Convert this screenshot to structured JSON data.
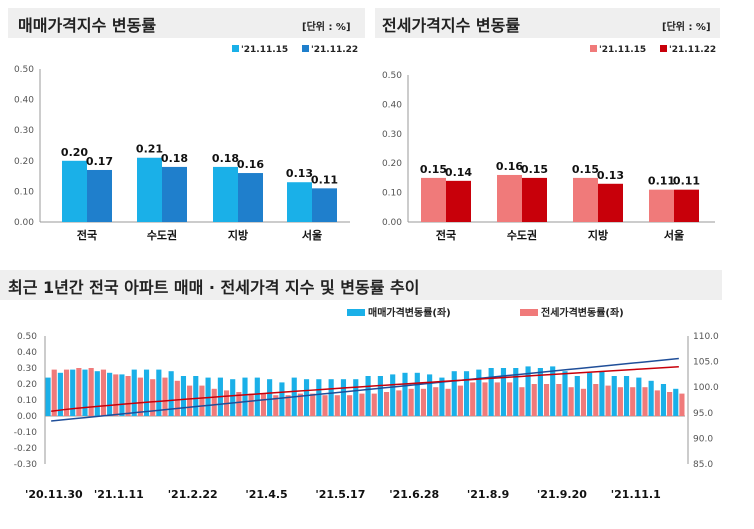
{
  "chart_data": [
    {
      "type": "bar",
      "title": "매매가격지수 변동률",
      "unit": "[단위 : %]",
      "categories": [
        "전국",
        "수도권",
        "지방",
        "서울"
      ],
      "series": [
        {
          "name": "'21.11.15",
          "values": [
            0.2,
            0.21,
            0.18,
            0.13
          ],
          "color": "#1ab0e8"
        },
        {
          "name": "'21.11.22",
          "values": [
            0.17,
            0.18,
            0.16,
            0.11
          ],
          "color": "#1f7fcc"
        }
      ],
      "ylim": [
        0,
        0.5
      ],
      "yticks": [
        "0.00",
        "0.10",
        "0.20",
        "0.30",
        "0.40",
        "0.50"
      ]
    },
    {
      "type": "bar",
      "title": "전세가격지수 변동률",
      "unit": "[단위 : %]",
      "categories": [
        "전국",
        "수도권",
        "지방",
        "서울"
      ],
      "series": [
        {
          "name": "'21.11.15",
          "values": [
            0.15,
            0.16,
            0.15,
            0.11
          ],
          "color": "#f07a7a"
        },
        {
          "name": "'21.11.22",
          "values": [
            0.14,
            0.15,
            0.13,
            0.11
          ],
          "color": "#c8000a"
        }
      ],
      "ylim": [
        0,
        0.5
      ],
      "yticks": [
        "0.00",
        "0.10",
        "0.20",
        "0.30",
        "0.40",
        "0.50"
      ]
    },
    {
      "type": "bar+line",
      "title": "최근 1년간 전국 아파트 매매 · 전세가격 지수 및 변동률 추이",
      "xticks": [
        "'20.11.30",
        "'21.1.11",
        "'21.2.22",
        "'21.4.5",
        "'21.5.17",
        "'21.6.28",
        "'21.8.9",
        "'21.9.20",
        "'21.11.1"
      ],
      "yticks_left": [
        "0.50",
        "0.40",
        "0.30",
        "0.20",
        "0.10",
        "0.00",
        "-0.10",
        "-0.20",
        "-0.30"
      ],
      "ylim_left": [
        -0.3,
        0.5
      ],
      "yticks_right": [
        "110.0",
        "105.0",
        "100.0",
        "95.0",
        "90.0",
        "85.0"
      ],
      "ylim_right": [
        85,
        110
      ],
      "series": [
        {
          "name": "매매가격변동률(좌)",
          "color": "#1ab0e8",
          "values": [
            0.24,
            0.27,
            0.29,
            0.29,
            0.28,
            0.27,
            0.26,
            0.29,
            0.29,
            0.29,
            0.28,
            0.25,
            0.25,
            0.24,
            0.24,
            0.23,
            0.24,
            0.24,
            0.23,
            0.21,
            0.24,
            0.23,
            0.23,
            0.23,
            0.23,
            0.23,
            0.25,
            0.25,
            0.26,
            0.27,
            0.27,
            0.26,
            0.24,
            0.28,
            0.28,
            0.29,
            0.3,
            0.3,
            0.3,
            0.31,
            0.3,
            0.31,
            0.28,
            0.25,
            0.27,
            0.28,
            0.25,
            0.25,
            0.24,
            0.22,
            0.2,
            0.17
          ]
        },
        {
          "name": "전세가격변동률(좌)",
          "color": "#f07a7a",
          "values": [
            0.29,
            0.29,
            0.3,
            0.3,
            0.29,
            0.26,
            0.25,
            0.24,
            0.23,
            0.24,
            0.22,
            0.19,
            0.19,
            0.17,
            0.16,
            0.15,
            0.14,
            0.14,
            0.13,
            0.13,
            0.14,
            0.14,
            0.13,
            0.13,
            0.13,
            0.14,
            0.14,
            0.15,
            0.16,
            0.17,
            0.17,
            0.18,
            0.17,
            0.19,
            0.21,
            0.21,
            0.21,
            0.21,
            0.18,
            0.2,
            0.2,
            0.2,
            0.18,
            0.17,
            0.2,
            0.19,
            0.18,
            0.18,
            0.18,
            0.16,
            0.15,
            0.14
          ]
        }
      ]
    }
  ]
}
